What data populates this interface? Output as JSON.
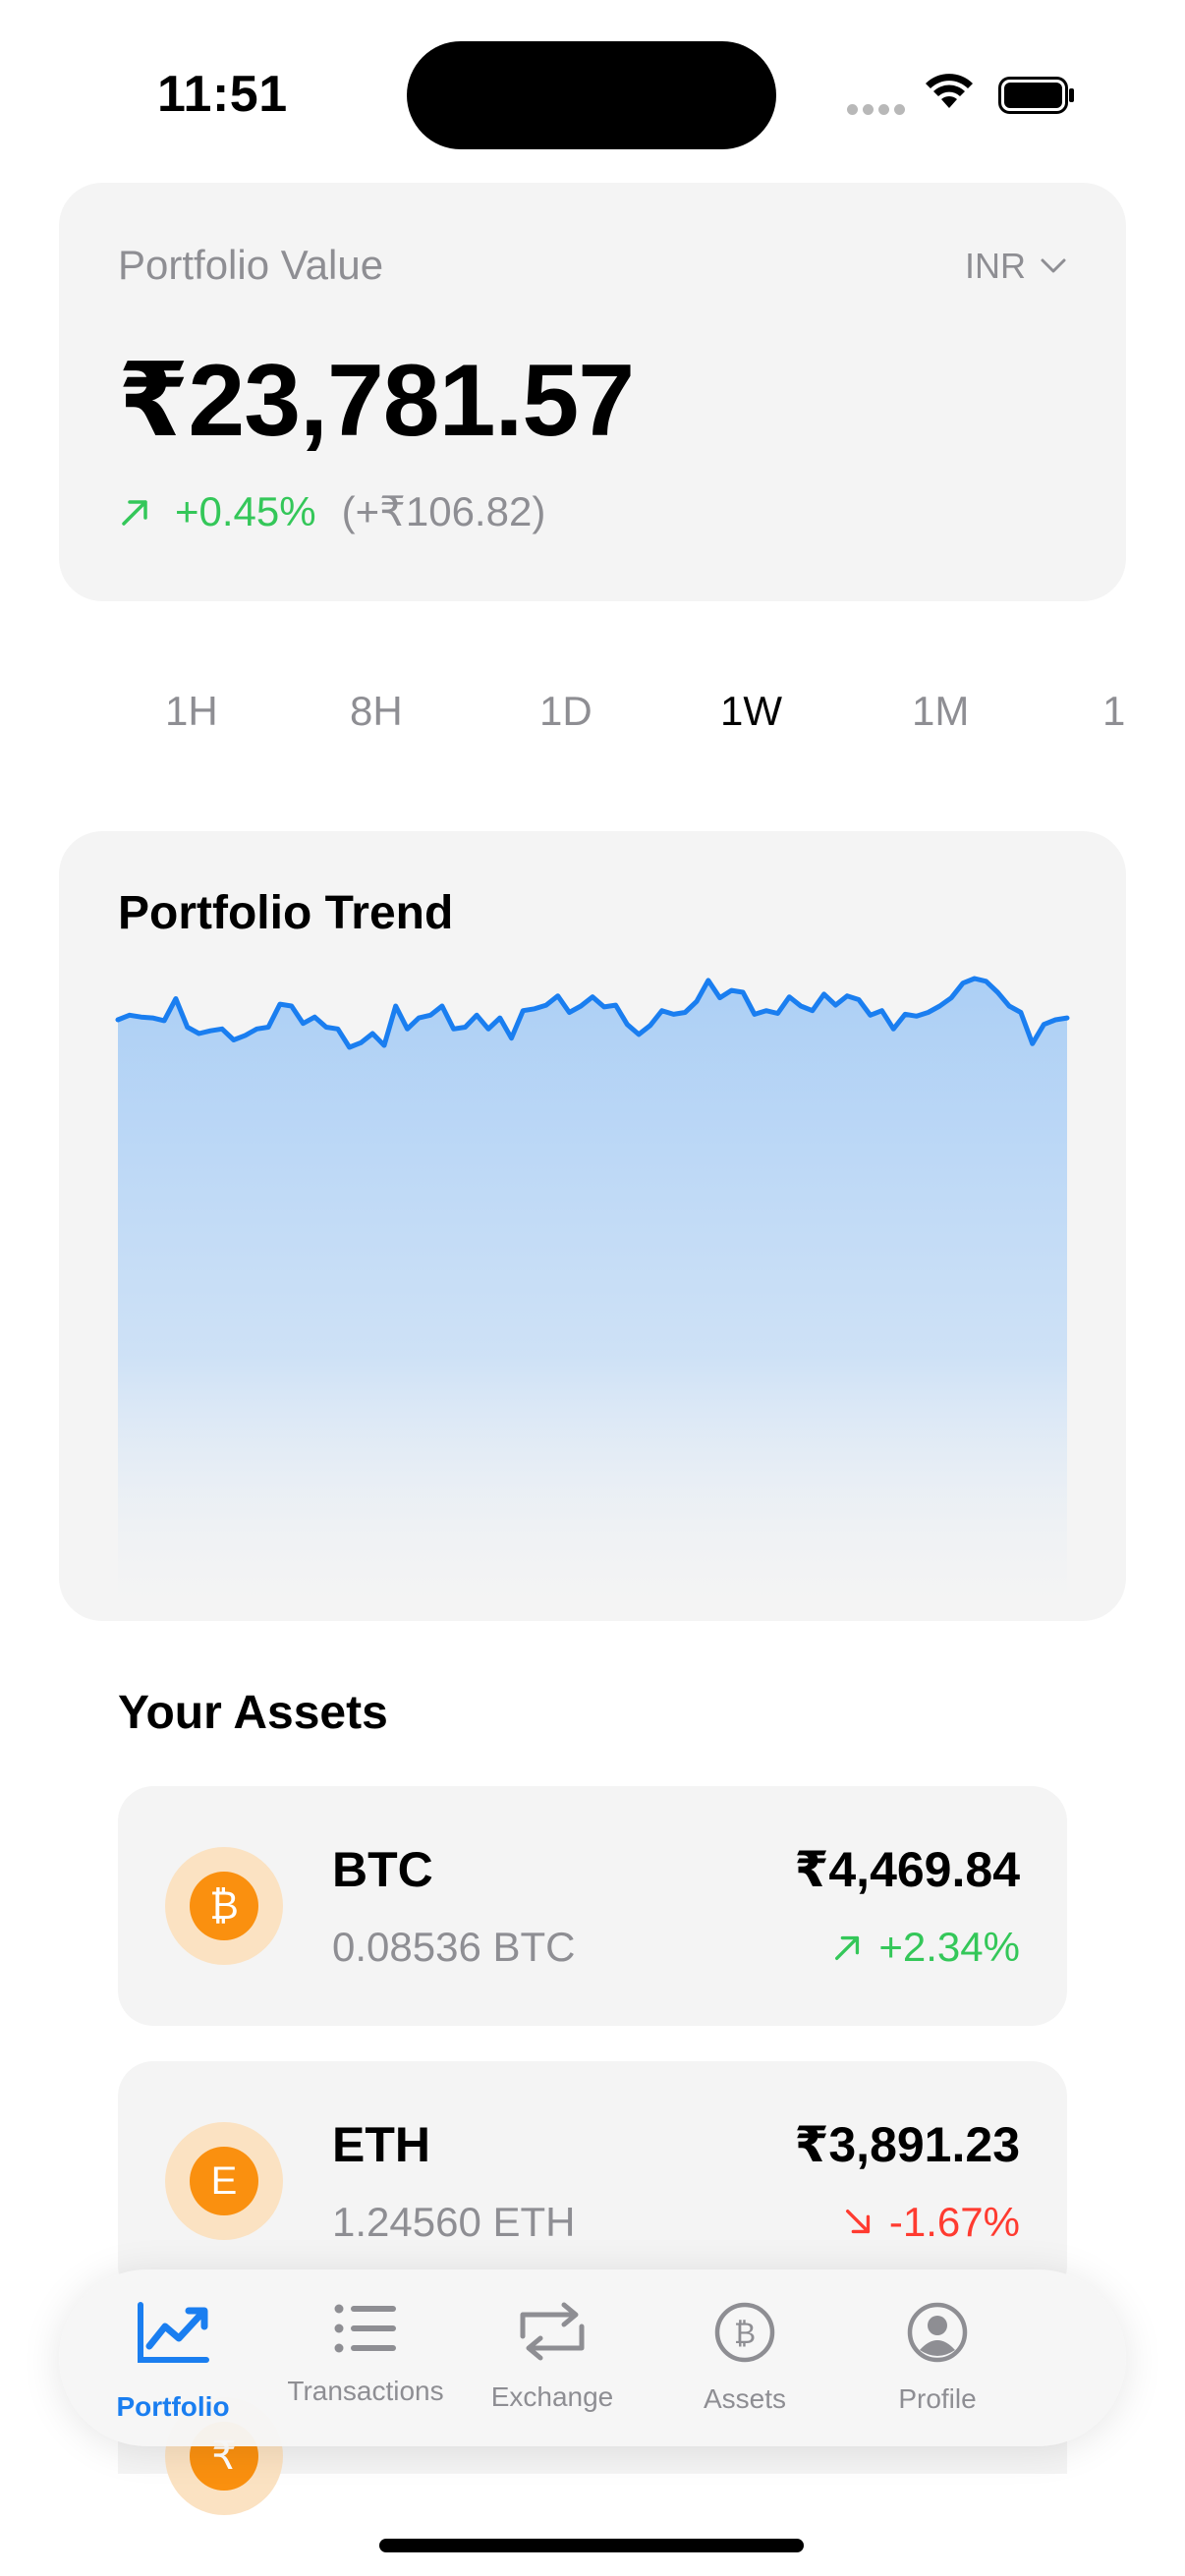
{
  "status_bar": {
    "time": "11:51"
  },
  "portfolio": {
    "label": "Portfolio Value",
    "currency": "INR",
    "value": "₹23,781.57",
    "change_pct": "+0.45%",
    "change_abs": "(+₹106.82)"
  },
  "ranges": [
    {
      "label": "1H",
      "active": false
    },
    {
      "label": "8H",
      "active": false
    },
    {
      "label": "1D",
      "active": false
    },
    {
      "label": "1W",
      "active": true
    },
    {
      "label": "1M",
      "active": false
    },
    {
      "label": "1",
      "active": false
    }
  ],
  "trend": {
    "title": "Portfolio Trend",
    "line_color": "#1a7ef0",
    "fill_color": "#a8cdf5"
  },
  "chart_data": {
    "type": "area",
    "title": "Portfolio Trend",
    "xlabel": "",
    "ylabel": "",
    "grid": false,
    "values": [
      100.0,
      100.5,
      100.3,
      100.2,
      99.9,
      102.3,
      99.2,
      98.5,
      98.8,
      99.0,
      97.8,
      98.3,
      99.0,
      99.2,
      101.7,
      101.5,
      99.6,
      100.3,
      99.2,
      99.0,
      97.0,
      97.5,
      98.5,
      97.2,
      101.5,
      99.0,
      100.2,
      100.5,
      101.5,
      99.0,
      99.2,
      100.5,
      99.0,
      100.2,
      98.0,
      101.0,
      101.2,
      101.6,
      102.6,
      100.8,
      101.5,
      102.5,
      101.4,
      101.6,
      99.5,
      98.4,
      99.4,
      101.0,
      100.6,
      100.8,
      102.0,
      104.3,
      102.4,
      103.2,
      103.0,
      100.6,
      101.0,
      100.7,
      102.5,
      101.5,
      101.0,
      102.8,
      101.6,
      102.6,
      102.2,
      100.5,
      101.0,
      99.0,
      100.6,
      100.4,
      100.8,
      101.5,
      102.4,
      104.0,
      104.5,
      104.2,
      103.0,
      101.5,
      100.8,
      97.4,
      99.5,
      100.0,
      100.2
    ]
  },
  "assets_section": {
    "title": "Your Assets"
  },
  "assets": [
    {
      "symbol": "BTC",
      "amount": "0.08536 BTC",
      "value": "₹4,469.84",
      "change": "+2.34%",
      "direction": "up",
      "coin_letter": "₿",
      "coin_icon": "bitcoin-icon"
    },
    {
      "symbol": "ETH",
      "amount": "1.24560 ETH",
      "value": "₹3,891.23",
      "change": "-1.67%",
      "direction": "down",
      "coin_letter": "E",
      "coin_icon": "ethereum-icon"
    },
    {
      "symbol": "",
      "amount": "",
      "value": "",
      "change": "",
      "direction": "",
      "coin_letter": "₹",
      "coin_icon": "rupee-icon"
    }
  ],
  "tabs": [
    {
      "label": "Portfolio",
      "icon": "chart-icon",
      "active": true
    },
    {
      "label": "Transactions",
      "icon": "list-icon",
      "active": false
    },
    {
      "label": "Exchange",
      "icon": "exchange-icon",
      "active": false
    },
    {
      "label": "Assets",
      "icon": "bitcoin-circle-icon",
      "active": false
    },
    {
      "label": "Profile",
      "icon": "profile-icon",
      "active": false
    }
  ],
  "colors": {
    "accent": "#1a7ef0",
    "positive": "#34c759",
    "negative": "#ff3b30",
    "coin": "#fa900f"
  }
}
